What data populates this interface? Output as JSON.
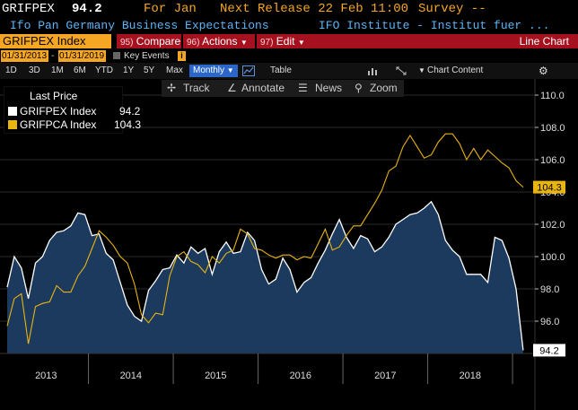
{
  "header": {
    "ticker": "GRIFPEX",
    "value": "94.2",
    "period": "For Jan",
    "next_release": "Next Release 22 Feb 11:00",
    "survey": "Survey --"
  },
  "description": {
    "name": "Ifo Pan Germany Business Expectations",
    "source": "IFO Institute - Institut fuer ..."
  },
  "toolbar": {
    "security": "GRIFPEX Index",
    "compare_num": "95)",
    "compare": "Compare",
    "actions_num": "96)",
    "actions": "Actions",
    "edit_num": "97)",
    "edit": "Edit",
    "chart_type": "Line Chart"
  },
  "dates": {
    "start": "01/31/2013",
    "separator": "-",
    "end": "01/31/2019",
    "key_events": "Key Events",
    "info": "i"
  },
  "periods": {
    "items": [
      "1D",
      "3D",
      "1M",
      "6M",
      "YTD",
      "1Y",
      "5Y",
      "Max"
    ],
    "selected": "Monthly",
    "table": "Table",
    "chart_content": "Chart Content"
  },
  "chart_tools": {
    "track": "Track",
    "annotate": "Annotate",
    "news": "News",
    "zoom": "Zoom"
  },
  "legend": {
    "title": "Last Price",
    "entries": [
      "GRIFPEX Index",
      "GRIFPCA Index"
    ],
    "values": [
      "94.2",
      "104.3"
    ]
  },
  "colors": {
    "grifpex": "#ffffff",
    "grifpca": "#e8b410",
    "area": "#1b3a5e",
    "accent": "#f5a623",
    "toolbar": "#a5111f",
    "description": "#5bb4f5"
  },
  "chart_data": {
    "type": "line",
    "x_start": "2013-01",
    "x_end": "2019-01",
    "xticks": [
      "2013",
      "2014",
      "2015",
      "2016",
      "2017",
      "2018"
    ],
    "yticks": [
      "96.0",
      "98.0",
      "100.0",
      "102.0",
      "104.0",
      "106.0",
      "108.0",
      "110.0"
    ],
    "ylim": [
      94,
      111
    ],
    "last_labels": [
      "104.3",
      "94.2"
    ],
    "series": [
      {
        "name": "GRIFPEX Index",
        "values": [
          98.1,
          100.0,
          99.3,
          97.4,
          99.6,
          100.0,
          101.0,
          101.5,
          101.6,
          101.9,
          102.7,
          102.6,
          101.3,
          101.4,
          100.2,
          99.8,
          98.4,
          97.0,
          96.3,
          96.0,
          97.9,
          98.5,
          99.2,
          99.3,
          100.1,
          99.6,
          100.6,
          100.2,
          100.5,
          98.9,
          100.3,
          100.9,
          100.2,
          100.3,
          101.5,
          101.0,
          99.2,
          98.3,
          98.6,
          99.9,
          99.2,
          97.8,
          98.4,
          98.7,
          99.6,
          100.4,
          101.4,
          102.3,
          101.2,
          100.5,
          101.3,
          101.1,
          100.3,
          100.6,
          101.2,
          102.0,
          102.3,
          102.6,
          102.7,
          103.0,
          103.4,
          102.6,
          101.0,
          100.4,
          100.0,
          98.9,
          98.9,
          98.9,
          98.4,
          101.2,
          101.0,
          99.9,
          98.0,
          94.2
        ]
      },
      {
        "name": "GRIFPCA Index",
        "values": [
          95.7,
          97.4,
          97.7,
          94.6,
          96.9,
          97.1,
          97.2,
          98.2,
          97.8,
          97.8,
          98.8,
          99.4,
          100.5,
          101.6,
          101.2,
          100.7,
          100.0,
          99.6,
          98.3,
          96.4,
          95.9,
          96.5,
          96.4,
          98.8,
          100.0,
          100.3,
          99.7,
          99.5,
          99.0,
          100.0,
          99.6,
          100.2,
          100.4,
          101.7,
          101.4,
          100.5,
          100.4,
          100.1,
          99.9,
          100.1,
          100.1,
          99.8,
          100.0,
          99.9,
          100.8,
          101.7,
          100.4,
          100.6,
          101.3,
          101.9,
          101.9,
          102.6,
          103.3,
          104.1,
          105.3,
          105.6,
          106.8,
          107.5,
          106.8,
          106.1,
          106.3,
          107.1,
          107.6,
          107.6,
          107.0,
          106.0,
          106.7,
          106.0,
          106.6,
          106.2,
          105.8,
          105.5,
          104.7,
          104.3
        ]
      }
    ]
  }
}
